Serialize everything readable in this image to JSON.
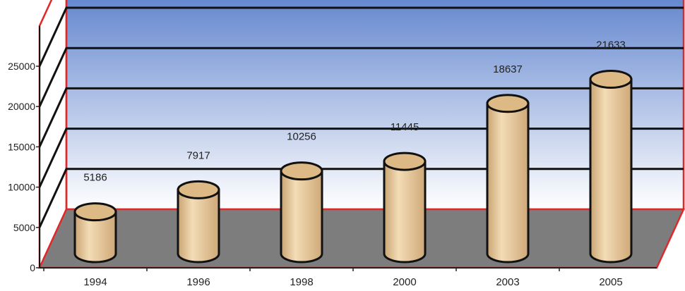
{
  "chart_data": {
    "type": "bar",
    "style": "3d-cylinder",
    "categories": [
      "1994",
      "1996",
      "1998",
      "2000",
      "2003",
      "2005"
    ],
    "values": [
      5186,
      7917,
      10256,
      11445,
      18637,
      21633
    ],
    "value_labels": [
      "5186",
      "7917",
      "10256",
      "11445",
      "18637",
      "21633"
    ],
    "ylim": [
      0,
      30000
    ],
    "yticks": [
      0,
      5000,
      10000,
      15000,
      20000,
      25000
    ],
    "ytick_labels": [
      "0",
      "5000",
      "10000",
      "15000",
      "20000",
      "25000"
    ],
    "grid": true,
    "legend": "none"
  },
  "colors": {
    "back_wall_top": "#4f76c8",
    "back_wall_bottom": "#ffffff",
    "floor": "#7d7d7d",
    "frame_edge": "#e0282b",
    "cylinder_body": "#e7c596",
    "cylinder_top": "#ddb985",
    "outline": "#111111"
  }
}
